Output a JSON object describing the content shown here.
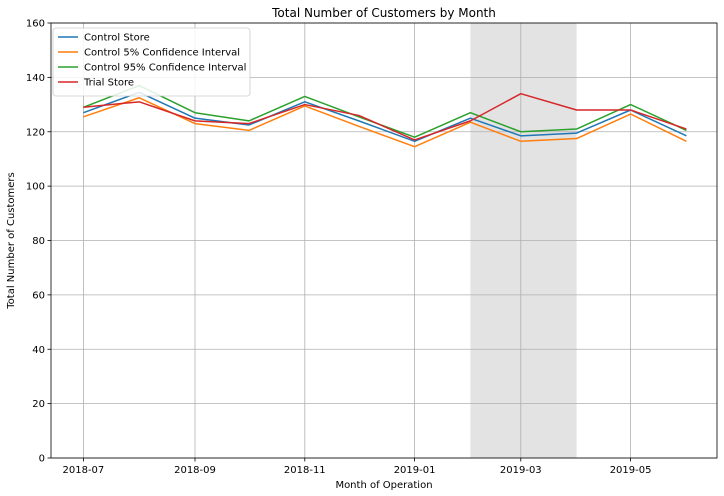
{
  "chart_data": {
    "type": "line",
    "title": "Total Number of Customers by Month",
    "xlabel": "Month of Operation",
    "ylabel": "Total Number of Customers",
    "ylim": [
      0,
      160
    ],
    "yticks": [
      0,
      20,
      40,
      60,
      80,
      100,
      120,
      140,
      160
    ],
    "xlim": [
      "2018-06-13",
      "2019-06-18"
    ],
    "xticks": [
      "2018-07",
      "2018-09",
      "2018-11",
      "2019-01",
      "2019-03",
      "2019-05"
    ],
    "grid": true,
    "legend_position": "top-left",
    "shaded_region": {
      "from": "2019-02-01",
      "to": "2019-04-01",
      "color": "#e3e3e3"
    },
    "x": [
      "2018-07-01",
      "2018-08-01",
      "2018-09-01",
      "2018-10-01",
      "2018-11-01",
      "2018-12-01",
      "2019-01-01",
      "2019-02-01",
      "2019-03-01",
      "2019-04-01",
      "2019-05-01",
      "2019-06-01"
    ],
    "series": [
      {
        "name": "Control Store",
        "color": "#1f77b4",
        "values": [
          127,
          134.5,
          125,
          122.5,
          131,
          124,
          116.5,
          125,
          118.5,
          119.5,
          128,
          118.5
        ]
      },
      {
        "name": "Control 5% Confidence Interval",
        "color": "#ff7f0e",
        "values": [
          125.5,
          132.5,
          123,
          120.5,
          129.5,
          122,
          114.5,
          123.5,
          116.5,
          117.5,
          126.5,
          116.5
        ]
      },
      {
        "name": "Control 95% Confidence Interval",
        "color": "#2ca02c",
        "values": [
          129,
          137,
          127,
          124,
          133,
          125.5,
          118,
          127,
          120,
          121,
          130,
          120.5
        ]
      },
      {
        "name": "Trial Store",
        "color": "#d62728",
        "values": [
          129,
          131,
          124,
          123,
          130,
          126,
          117,
          124,
          134,
          128,
          128,
          121
        ]
      }
    ]
  }
}
